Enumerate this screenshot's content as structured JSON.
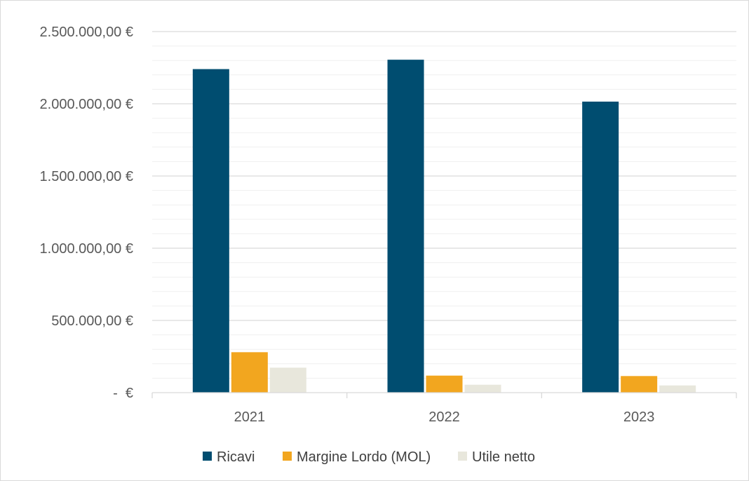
{
  "chart_data": {
    "type": "bar",
    "title": "",
    "xlabel": "",
    "ylabel": "",
    "categories": [
      "2021",
      "2022",
      "2023"
    ],
    "series": [
      {
        "name": "Ricavi",
        "color": "#004d70",
        "values": [
          2240000,
          2305000,
          2015000
        ]
      },
      {
        "name": "Margine Lordo (MOL)",
        "color": "#f2a61f",
        "values": [
          280000,
          118000,
          115000
        ]
      },
      {
        "name": "Utile netto",
        "color": "#e8e7dc",
        "values": [
          173000,
          55000,
          50000
        ]
      }
    ],
    "ylim": [
      0,
      2500000
    ],
    "yticks": [
      0,
      500000,
      1000000,
      1500000,
      2000000,
      2500000
    ],
    "ytick_labels": [
      "-  €",
      "500.000,00 €",
      "1.000.000,00 €",
      "1.500.000,00 €",
      "2.000.000,00 €",
      "2.500.000,00 €"
    ],
    "grid": "major and minor horizontal gridlines",
    "legend": "bottom-center"
  }
}
